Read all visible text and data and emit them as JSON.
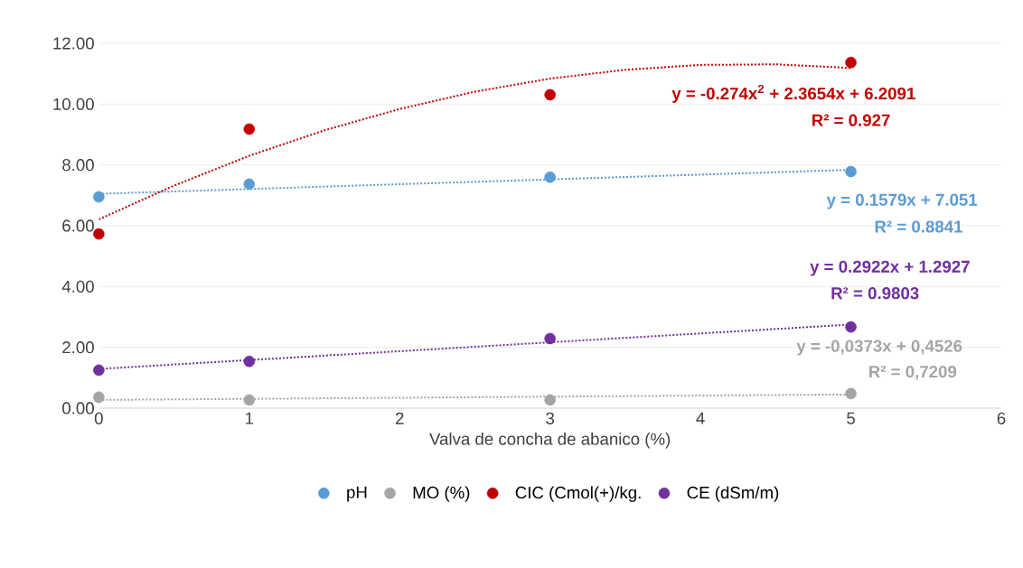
{
  "chart_data": {
    "type": "scatter",
    "xlabel": "Valva de concha de abanico (%)",
    "xlim": [
      0,
      6
    ],
    "xticks": [
      0,
      1,
      2,
      3,
      4,
      5,
      6
    ],
    "ylim": [
      0,
      12
    ],
    "yticks": [
      {
        "value": 0,
        "label": "0.00"
      },
      {
        "value": 2,
        "label": "2.00"
      },
      {
        "value": 4,
        "label": "4.00"
      },
      {
        "value": 6,
        "label": "6.00"
      },
      {
        "value": 8,
        "label": "8.00"
      },
      {
        "value": 10,
        "label": "10.00"
      },
      {
        "value": 12,
        "label": "12.00"
      }
    ],
    "grid": "y",
    "legend": "bottom",
    "x": [
      0,
      1,
      3,
      5
    ],
    "series": [
      {
        "name": "pH",
        "marker": "circle",
        "color": "#5b9bd5",
        "values": [
          6.95,
          7.37,
          7.6,
          7.78
        ]
      },
      {
        "name": "MO (%)",
        "marker": "circle",
        "color": "#a5a5a5",
        "values": [
          0.36,
          0.27,
          0.27,
          0.48
        ]
      },
      {
        "name": "CIC (Cmol(+)/kg.",
        "marker": "circle",
        "color": "#c00000",
        "values": [
          5.73,
          9.18,
          10.31,
          11.37
        ]
      },
      {
        "name": "CE (dSm/m)",
        "marker": "circle",
        "color": "#7030a0",
        "values": [
          1.25,
          1.54,
          2.29,
          2.67
        ]
      },
      {
        "type": "line",
        "line_style": "dotted",
        "marker": "none",
        "color": "#5b9bd5",
        "x": [
          0,
          5
        ],
        "values": [
          7.05,
          7.84
        ]
      },
      {
        "type": "line",
        "line_style": "dotted",
        "marker": "none",
        "color": "#a5a5a5",
        "x": [
          0,
          5
        ],
        "values": [
          0.27,
          0.45
        ]
      },
      {
        "type": "line",
        "line_style": "dotted",
        "marker": "none",
        "color": "#c00000",
        "x": [
          0,
          0.5,
          1,
          1.5,
          2,
          2.5,
          3,
          3.5,
          4,
          4.5,
          5
        ],
        "values": [
          6.21,
          7.32,
          8.3,
          9.14,
          9.84,
          10.41,
          10.84,
          11.13,
          11.29,
          11.31,
          11.19
        ]
      },
      {
        "type": "line",
        "line_style": "dotted",
        "marker": "none",
        "color": "#7030a0",
        "x": [
          0,
          5
        ],
        "values": [
          1.29,
          2.75
        ]
      }
    ],
    "annotations": [
      "y = 0.1579x + 7.051",
      "R² = 0.8841",
      "y = -0,0373x + 0,4526",
      "R² = 0,7209",
      "y = -0.274x$^{2}$ + 2.3654x + 6.2091",
      "R² = 0.927",
      "y = 0.2922x + 1.2927",
      "R² = 0.9803"
    ]
  }
}
